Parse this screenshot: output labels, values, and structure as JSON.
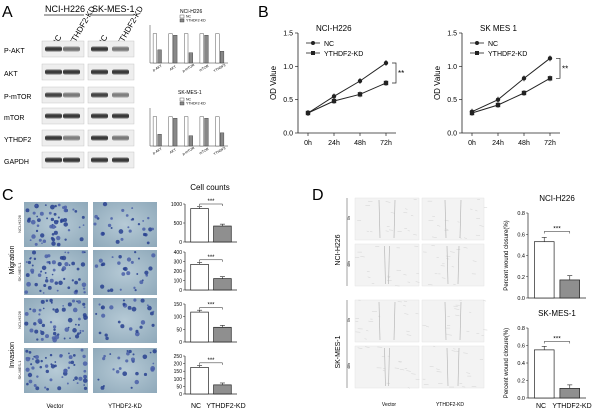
{
  "panels": {
    "A": {
      "label": "A",
      "groups": [
        "NCI-H226",
        "SK-MES-1"
      ],
      "lanes": [
        "NC",
        "YTHDF2-KD",
        "NC",
        "YTHDF2-KD"
      ],
      "blots": [
        "P-AKT",
        "AKT",
        "P-mTOR",
        "mTOR",
        "YTHDF2",
        "GAPDH"
      ],
      "mini_titles": [
        "NCI-H226",
        "SK-MES-1"
      ],
      "mini_legend": [
        "NC",
        "YTHDF2-KD"
      ]
    },
    "B": {
      "label": "B",
      "ylabel": "OD Value",
      "sig": "**",
      "legend": [
        "NC",
        "YTHDF2-KD"
      ]
    },
    "C": {
      "label": "C",
      "title": "Cell counts",
      "side_labels": [
        "Migration",
        "Invasion"
      ],
      "row_labels": [
        "NCI-H226",
        "SK-MES-1",
        "NCI-H226",
        "SK-MES-1"
      ],
      "col_labels": [
        "Vector",
        "YTHDF2-KD"
      ],
      "x_labels": [
        "NC",
        "YTHDF2-KD"
      ],
      "sig": "***"
    },
    "D": {
      "label": "D",
      "row_labels": [
        "NCI-H226",
        "SK-MES-1"
      ],
      "time_labels": [
        "0h",
        "48h",
        "0h",
        "48h"
      ],
      "col_labels": [
        "Vector",
        "YTHDF2-KD"
      ],
      "ylabel": "Percent wound closure(%)",
      "x_labels": [
        "NC",
        "YTHDF2-KD"
      ],
      "sig": "***"
    }
  },
  "chart_data": [
    {
      "type": "line",
      "title": "NCI-H226",
      "xlabel": "",
      "ylabel": "OD Value",
      "x": [
        "0h",
        "24h",
        "48h",
        "72h"
      ],
      "ylim": [
        0,
        1.5
      ],
      "yticks": [
        "0.0",
        "0.5",
        "1.0",
        "1.5"
      ],
      "grid": false,
      "legend": "top-left",
      "series": [
        {
          "name": "NC",
          "values": [
            0.3,
            0.55,
            0.78,
            1.05
          ]
        },
        {
          "name": "YTHDF2-KD",
          "values": [
            0.3,
            0.48,
            0.58,
            0.75
          ]
        }
      ],
      "annotation": "**"
    },
    {
      "type": "line",
      "title": "SK MES 1",
      "xlabel": "",
      "ylabel": "OD Value",
      "x": [
        "0h",
        "24h",
        "48h",
        "72h"
      ],
      "ylim": [
        0,
        1.5
      ],
      "yticks": [
        "0.0",
        "0.5",
        "1.0",
        "1.5"
      ],
      "grid": false,
      "legend": "top-left",
      "series": [
        {
          "name": "NC",
          "values": [
            0.32,
            0.5,
            0.82,
            1.12
          ]
        },
        {
          "name": "YTHDF2-KD",
          "values": [
            0.3,
            0.42,
            0.6,
            0.82
          ]
        }
      ],
      "annotation": "**"
    },
    {
      "type": "bar",
      "title": "Cell counts",
      "categories": [
        "NC",
        "YTHDF2-KD"
      ],
      "ylim": [
        0,
        1000
      ],
      "yticks": [
        "0",
        "500",
        "1000"
      ],
      "values": [
        880,
        420
      ],
      "annotation": "***"
    },
    {
      "type": "bar",
      "title": "",
      "categories": [
        "NC",
        "YTHDF2-KD"
      ],
      "ylim": [
        0,
        400
      ],
      "yticks": [
        "0",
        "100",
        "200",
        "300",
        "400"
      ],
      "values": [
        270,
        120
      ],
      "annotation": "***"
    },
    {
      "type": "bar",
      "title": "",
      "categories": [
        "NC",
        "YTHDF2-KD"
      ],
      "ylim": [
        0,
        150
      ],
      "yticks": [
        "0",
        "50",
        "100",
        "150"
      ],
      "values": [
        118,
        58
      ],
      "annotation": "***"
    },
    {
      "type": "bar",
      "title": "",
      "categories": [
        "NC",
        "YTHDF2-KD"
      ],
      "ylim": [
        0,
        250
      ],
      "yticks": [
        "0",
        "50",
        "100",
        "150",
        "200",
        "250"
      ],
      "values": [
        175,
        60
      ],
      "annotation": "***"
    },
    {
      "type": "bar",
      "title": "NCI-H226",
      "ylabel": "Percent wound closure(%)",
      "categories": [
        "NC",
        "YTHDF2-KD"
      ],
      "ylim": [
        0,
        0.8
      ],
      "yticks": [
        "0.0",
        "0.2",
        "0.4",
        "0.6",
        "0.8"
      ],
      "values": [
        0.53,
        0.17
      ],
      "annotation": "***"
    },
    {
      "type": "bar",
      "title": "SK-MES-1",
      "ylabel": "Percent wound closure(%)",
      "categories": [
        "NC",
        "YTHDF2-KD"
      ],
      "ylim": [
        0,
        0.8
      ],
      "yticks": [
        "0.0",
        "0.2",
        "0.4",
        "0.6",
        "0.8"
      ],
      "values": [
        0.55,
        0.11
      ],
      "annotation": "***"
    },
    {
      "type": "bar",
      "title": "NCI-H226",
      "legend_entries": [
        "NC",
        "YTHDF2-KD"
      ],
      "categories": [
        "p-AKT",
        "AKT",
        "p-mTOR",
        "mTOR",
        "YTHDF2"
      ],
      "series": [
        {
          "name": "NC",
          "values": [
            1.0,
            1.0,
            1.0,
            1.0,
            1.0
          ]
        },
        {
          "name": "YTHDF2-KD",
          "values": [
            0.45,
            0.95,
            0.35,
            0.95,
            0.4
          ]
        }
      ]
    },
    {
      "type": "bar",
      "title": "SK-MES-1",
      "legend_entries": [
        "NC",
        "YTHDF2-KD"
      ],
      "categories": [
        "p-AKT",
        "AKT",
        "p-mTOR",
        "mTOR",
        "YTHDF2"
      ],
      "series": [
        {
          "name": "NC",
          "values": [
            1.0,
            1.0,
            1.0,
            1.0,
            1.0
          ]
        },
        {
          "name": "YTHDF2-KD",
          "values": [
            0.4,
            0.95,
            0.35,
            0.95,
            0.45
          ]
        }
      ]
    }
  ]
}
